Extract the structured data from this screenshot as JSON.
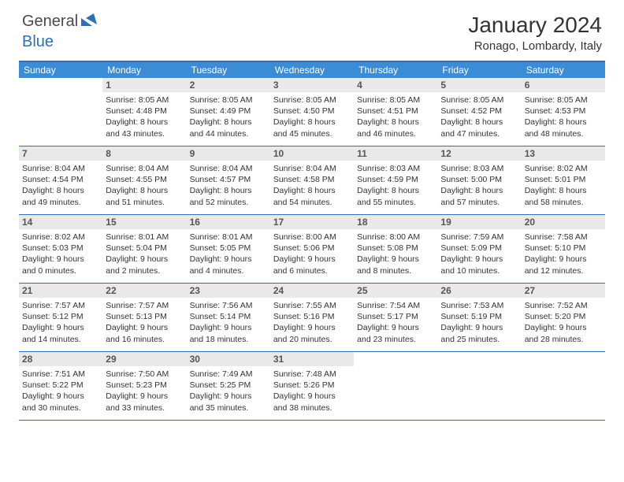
{
  "brand": {
    "part1": "General",
    "part2": "Blue"
  },
  "title": "January 2024",
  "location": "Ronago, Lombardy, Italy",
  "colors": {
    "header_bg": "#3b8cd4",
    "border": "#2d6fb8",
    "daynum_bg": "#e9e9e9",
    "text": "#333333"
  },
  "dayHeaders": [
    "Sunday",
    "Monday",
    "Tuesday",
    "Wednesday",
    "Thursday",
    "Friday",
    "Saturday"
  ],
  "weeks": [
    [
      null,
      {
        "n": "1",
        "sr": "8:05 AM",
        "ss": "4:48 PM",
        "dl": "8 hours and 43 minutes."
      },
      {
        "n": "2",
        "sr": "8:05 AM",
        "ss": "4:49 PM",
        "dl": "8 hours and 44 minutes."
      },
      {
        "n": "3",
        "sr": "8:05 AM",
        "ss": "4:50 PM",
        "dl": "8 hours and 45 minutes."
      },
      {
        "n": "4",
        "sr": "8:05 AM",
        "ss": "4:51 PM",
        "dl": "8 hours and 46 minutes."
      },
      {
        "n": "5",
        "sr": "8:05 AM",
        "ss": "4:52 PM",
        "dl": "8 hours and 47 minutes."
      },
      {
        "n": "6",
        "sr": "8:05 AM",
        "ss": "4:53 PM",
        "dl": "8 hours and 48 minutes."
      }
    ],
    [
      {
        "n": "7",
        "sr": "8:04 AM",
        "ss": "4:54 PM",
        "dl": "8 hours and 49 minutes."
      },
      {
        "n": "8",
        "sr": "8:04 AM",
        "ss": "4:55 PM",
        "dl": "8 hours and 51 minutes."
      },
      {
        "n": "9",
        "sr": "8:04 AM",
        "ss": "4:57 PM",
        "dl": "8 hours and 52 minutes."
      },
      {
        "n": "10",
        "sr": "8:04 AM",
        "ss": "4:58 PM",
        "dl": "8 hours and 54 minutes."
      },
      {
        "n": "11",
        "sr": "8:03 AM",
        "ss": "4:59 PM",
        "dl": "8 hours and 55 minutes."
      },
      {
        "n": "12",
        "sr": "8:03 AM",
        "ss": "5:00 PM",
        "dl": "8 hours and 57 minutes."
      },
      {
        "n": "13",
        "sr": "8:02 AM",
        "ss": "5:01 PM",
        "dl": "8 hours and 58 minutes."
      }
    ],
    [
      {
        "n": "14",
        "sr": "8:02 AM",
        "ss": "5:03 PM",
        "dl": "9 hours and 0 minutes."
      },
      {
        "n": "15",
        "sr": "8:01 AM",
        "ss": "5:04 PM",
        "dl": "9 hours and 2 minutes."
      },
      {
        "n": "16",
        "sr": "8:01 AM",
        "ss": "5:05 PM",
        "dl": "9 hours and 4 minutes."
      },
      {
        "n": "17",
        "sr": "8:00 AM",
        "ss": "5:06 PM",
        "dl": "9 hours and 6 minutes."
      },
      {
        "n": "18",
        "sr": "8:00 AM",
        "ss": "5:08 PM",
        "dl": "9 hours and 8 minutes."
      },
      {
        "n": "19",
        "sr": "7:59 AM",
        "ss": "5:09 PM",
        "dl": "9 hours and 10 minutes."
      },
      {
        "n": "20",
        "sr": "7:58 AM",
        "ss": "5:10 PM",
        "dl": "9 hours and 12 minutes."
      }
    ],
    [
      {
        "n": "21",
        "sr": "7:57 AM",
        "ss": "5:12 PM",
        "dl": "9 hours and 14 minutes."
      },
      {
        "n": "22",
        "sr": "7:57 AM",
        "ss": "5:13 PM",
        "dl": "9 hours and 16 minutes."
      },
      {
        "n": "23",
        "sr": "7:56 AM",
        "ss": "5:14 PM",
        "dl": "9 hours and 18 minutes."
      },
      {
        "n": "24",
        "sr": "7:55 AM",
        "ss": "5:16 PM",
        "dl": "9 hours and 20 minutes."
      },
      {
        "n": "25",
        "sr": "7:54 AM",
        "ss": "5:17 PM",
        "dl": "9 hours and 23 minutes."
      },
      {
        "n": "26",
        "sr": "7:53 AM",
        "ss": "5:19 PM",
        "dl": "9 hours and 25 minutes."
      },
      {
        "n": "27",
        "sr": "7:52 AM",
        "ss": "5:20 PM",
        "dl": "9 hours and 28 minutes."
      }
    ],
    [
      {
        "n": "28",
        "sr": "7:51 AM",
        "ss": "5:22 PM",
        "dl": "9 hours and 30 minutes."
      },
      {
        "n": "29",
        "sr": "7:50 AM",
        "ss": "5:23 PM",
        "dl": "9 hours and 33 minutes."
      },
      {
        "n": "30",
        "sr": "7:49 AM",
        "ss": "5:25 PM",
        "dl": "9 hours and 35 minutes."
      },
      {
        "n": "31",
        "sr": "7:48 AM",
        "ss": "5:26 PM",
        "dl": "9 hours and 38 minutes."
      },
      null,
      null,
      null
    ]
  ],
  "labels": {
    "sunrise": "Sunrise:",
    "sunset": "Sunset:",
    "daylight": "Daylight:"
  }
}
